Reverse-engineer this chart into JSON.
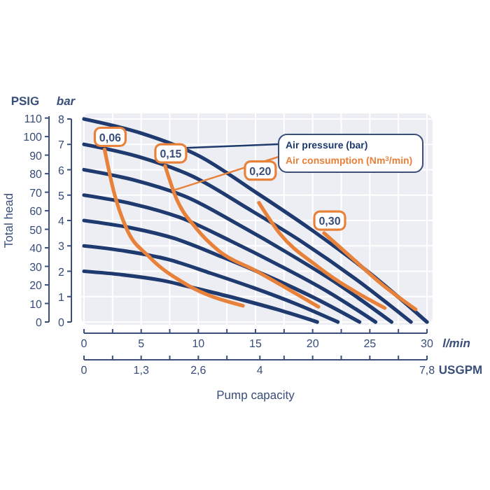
{
  "chart_data": {
    "type": "line",
    "xlabel": "l/min",
    "ylabel": "bar",
    "y2label": "PSIG",
    "x2label": "USGPM",
    "annotations": [
      {
        "text": "Air pressure (bar)",
        "x": 8.2,
        "y": 6.85
      },
      {
        "text": "Air consumption (Nm$^{3}$/min)",
        "x": 7.9,
        "y": 5.2
      },
      "Total head",
      "Pump capacity"
    ],
    "xlim": [
      0,
      30
    ],
    "xticks": [
      0,
      {
        "value": 2.5,
        "label": null
      },
      5,
      {
        "value": 7.5,
        "label": null
      },
      10,
      {
        "value": 12.5,
        "label": null
      },
      15,
      {
        "value": 17.5,
        "label": null
      },
      20,
      {
        "value": 22.5,
        "label": null
      },
      25,
      {
        "value": 27.5,
        "label": null
      },
      30
    ],
    "x2lim": [
      0,
      7.8
    ],
    "x2ticks": [
      0,
      {
        "value": 0.65,
        "label": null
      },
      {
        "value": 1.3,
        "label": "1,3"
      },
      {
        "value": 1.95,
        "label": null
      },
      {
        "value": 2.6,
        "label": "2,6"
      },
      {
        "value": 3.25,
        "label": null
      },
      {
        "value": 4,
        "label": "4"
      },
      {
        "value": 4.55,
        "label": null
      },
      {
        "value": 5.2,
        "label": null
      },
      {
        "value": 5.85,
        "label": null
      },
      {
        "value": 6.5,
        "label": null
      },
      {
        "value": 7.15,
        "label": null
      },
      {
        "value": 7.8,
        "label": "7,8"
      }
    ],
    "ylim": [
      0,
      8
    ],
    "yticks": [
      0,
      1,
      2,
      3,
      4,
      5,
      6,
      7,
      8
    ],
    "y2lim": [
      0,
      111
    ],
    "y2ticks": [
      0,
      10,
      20,
      30,
      40,
      50,
      60,
      70,
      80,
      90,
      100,
      110
    ],
    "grid": true,
    "marker": "none",
    "line_style": "solid",
    "series": [
      {
        "color": "#1e3a6e",
        "x": [
          0,
          5,
          10,
          15,
          20,
          25,
          30
        ],
        "values": [
          8,
          7.44,
          6.56,
          5.12,
          3.6,
          1.92,
          0
        ]
      },
      {
        "color": "#1e3a6e",
        "x": [
          0,
          4.8,
          9.5,
          14.3,
          19.1,
          23.8,
          28.6
        ],
        "values": [
          7,
          6.51,
          5.74,
          4.48,
          3.15,
          1.68,
          0
        ]
      },
      {
        "color": "#1e3a6e",
        "x": [
          0,
          4.5,
          9,
          13.5,
          17.9,
          22.4,
          26.9
        ],
        "values": [
          6,
          5.58,
          4.92,
          3.84,
          2.7,
          1.44,
          0
        ]
      },
      {
        "color": "#1e3a6e",
        "x": [
          0,
          4.3,
          8.5,
          12.8,
          17,
          21.3,
          25.5
        ],
        "values": [
          5,
          4.65,
          4.1,
          3.2,
          2.25,
          1.2,
          0
        ]
      },
      {
        "color": "#1e3a6e",
        "x": [
          0,
          4,
          8,
          12.1,
          16.1,
          20.1,
          24.1
        ],
        "values": [
          4,
          3.72,
          3.28,
          2.56,
          1.8,
          0.96,
          0
        ]
      },
      {
        "color": "#1e3a6e",
        "x": [
          0,
          3.7,
          7.4,
          11.1,
          14.8,
          18.5,
          22.2
        ],
        "values": [
          3,
          2.79,
          2.46,
          1.92,
          1.35,
          0.72,
          0
        ]
      },
      {
        "color": "#1e3a6e",
        "x": [
          0,
          3.4,
          6.8,
          10.2,
          13.6,
          17,
          20.4
        ],
        "values": [
          2,
          1.86,
          1.64,
          1.28,
          0.9,
          0.48,
          0
        ]
      },
      {
        "name": "0,06",
        "color": "#e8823a",
        "x": [
          1.8,
          2.6,
          3.7,
          5.7,
          9,
          13.9
        ],
        "values": [
          6.8,
          5.15,
          3.7,
          2.57,
          1.47,
          0.64
        ]
      },
      {
        "name": "0,15",
        "color": "#e8823a",
        "x": [
          7.1,
          8,
          9.8,
          11.8,
          15.1,
          20.5
        ],
        "values": [
          6.15,
          4.95,
          3.7,
          2.8,
          2,
          0.6
        ]
      },
      {
        "name": "0,20",
        "color": "#e8823a",
        "x": [
          15.3,
          17.1,
          20.4,
          26.3
        ],
        "values": [
          4.7,
          3.5,
          2.2,
          0.55
        ]
      },
      {
        "name": "0,30",
        "color": "#e8823a",
        "x": [
          21,
          23.3,
          26.1,
          29
        ],
        "values": [
          3.5,
          2.58,
          1.47,
          0.5
        ]
      }
    ]
  }
}
